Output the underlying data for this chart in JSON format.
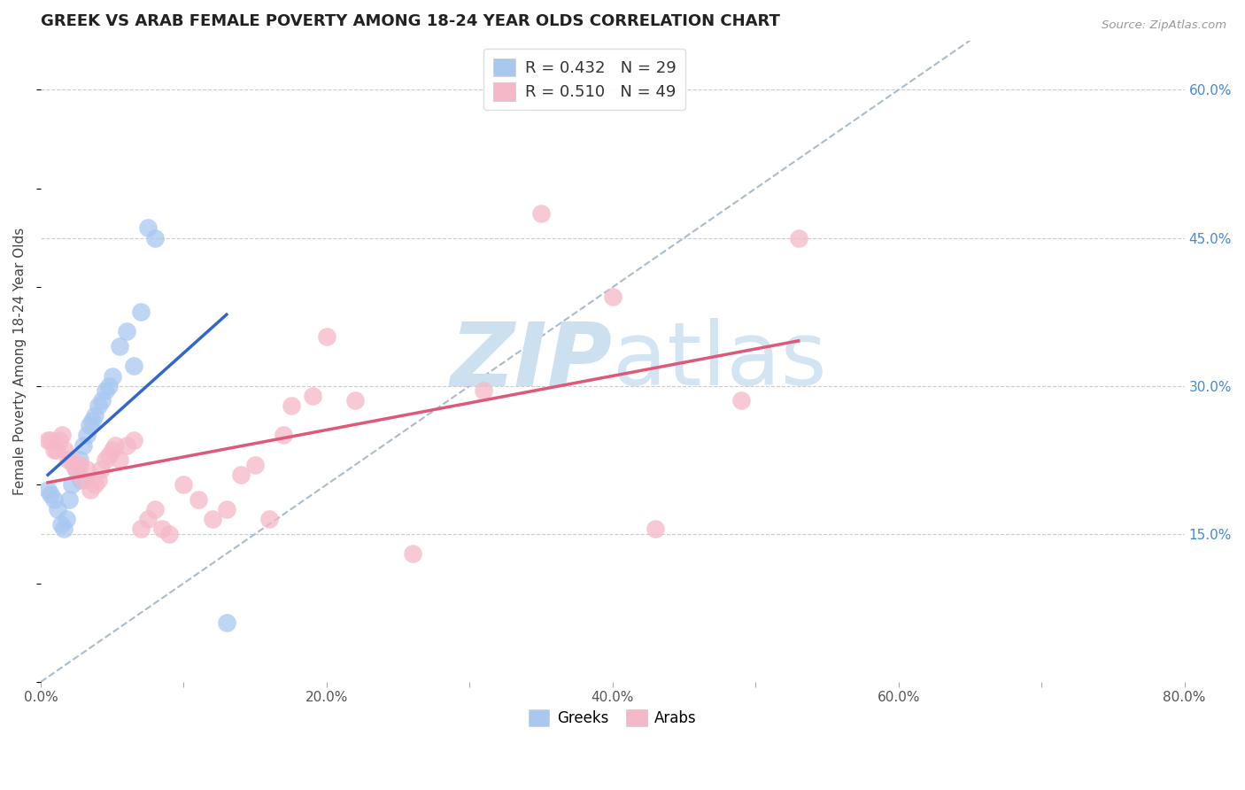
{
  "title": "GREEK VS ARAB FEMALE POVERTY AMONG 18-24 YEAR OLDS CORRELATION CHART",
  "source": "Source: ZipAtlas.com",
  "ylabel": "Female Poverty Among 18-24 Year Olds",
  "xlim": [
    0.0,
    0.8
  ],
  "ylim": [
    0.0,
    0.65
  ],
  "xticks": [
    0.0,
    0.1,
    0.2,
    0.3,
    0.4,
    0.5,
    0.6,
    0.7,
    0.8
  ],
  "xticklabels": [
    "0.0%",
    "",
    "20.0%",
    "",
    "40.0%",
    "",
    "60.0%",
    "",
    "80.0%"
  ],
  "yticks_right": [
    0.15,
    0.3,
    0.45,
    0.6
  ],
  "ytick_right_labels": [
    "15.0%",
    "30.0%",
    "45.0%",
    "60.0%"
  ],
  "greek_color": "#A8C8F0",
  "arab_color": "#F5B8C8",
  "greek_line_color": "#3366CC",
  "arab_line_color": "#E05878",
  "dash_color": "#AABBCC",
  "watermark_color": "#CCE0F0",
  "greek_x": [
    0.005,
    0.007,
    0.009,
    0.012,
    0.014,
    0.016,
    0.018,
    0.02,
    0.022,
    0.025,
    0.027,
    0.028,
    0.03,
    0.032,
    0.034,
    0.036,
    0.038,
    0.04,
    0.043,
    0.045,
    0.048,
    0.05,
    0.055,
    0.06,
    0.065,
    0.07,
    0.075,
    0.08,
    0.13
  ],
  "greek_y": [
    0.195,
    0.19,
    0.185,
    0.175,
    0.16,
    0.155,
    0.165,
    0.185,
    0.2,
    0.215,
    0.225,
    0.205,
    0.24,
    0.25,
    0.26,
    0.265,
    0.27,
    0.28,
    0.285,
    0.295,
    0.3,
    0.31,
    0.34,
    0.355,
    0.32,
    0.375,
    0.46,
    0.45,
    0.06
  ],
  "arab_x": [
    0.005,
    0.007,
    0.009,
    0.011,
    0.013,
    0.015,
    0.017,
    0.019,
    0.021,
    0.023,
    0.025,
    0.027,
    0.03,
    0.032,
    0.035,
    0.038,
    0.04,
    0.042,
    0.045,
    0.048,
    0.05,
    0.052,
    0.055,
    0.06,
    0.065,
    0.07,
    0.075,
    0.08,
    0.085,
    0.09,
    0.1,
    0.11,
    0.12,
    0.13,
    0.14,
    0.15,
    0.16,
    0.17,
    0.175,
    0.19,
    0.2,
    0.22,
    0.26,
    0.31,
    0.35,
    0.4,
    0.43,
    0.49,
    0.53
  ],
  "arab_y": [
    0.245,
    0.245,
    0.235,
    0.235,
    0.245,
    0.25,
    0.235,
    0.225,
    0.225,
    0.22,
    0.215,
    0.22,
    0.205,
    0.215,
    0.195,
    0.2,
    0.205,
    0.215,
    0.225,
    0.23,
    0.235,
    0.24,
    0.225,
    0.24,
    0.245,
    0.155,
    0.165,
    0.175,
    0.155,
    0.15,
    0.2,
    0.185,
    0.165,
    0.175,
    0.21,
    0.22,
    0.165,
    0.25,
    0.28,
    0.29,
    0.35,
    0.285,
    0.13,
    0.295,
    0.475,
    0.39,
    0.155,
    0.285,
    0.45
  ],
  "legend_greek_text": "R = 0.432   N = 29",
  "legend_arab_text": "R = 0.510   N = 49",
  "legend_bottom_greek": "Greeks",
  "legend_bottom_arab": "Arabs"
}
